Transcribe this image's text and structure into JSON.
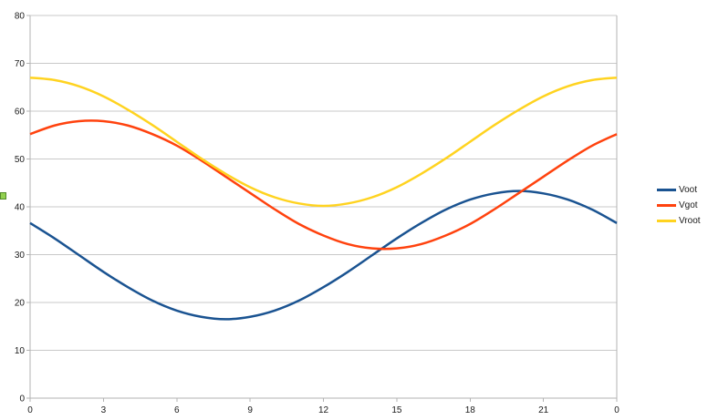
{
  "chart_data": {
    "type": "line",
    "title": "",
    "xlabel": "",
    "ylabel": "",
    "xlim": [
      0,
      24
    ],
    "ylim": [
      0,
      80
    ],
    "grid": "horizontal",
    "legend_position": "right",
    "x": [
      0,
      1,
      2,
      3,
      4,
      5,
      6,
      7,
      8,
      9,
      10,
      11,
      12,
      13,
      14,
      15,
      16,
      17,
      18,
      19,
      20,
      21,
      22,
      23,
      24
    ],
    "x_tick_positions": [
      0,
      3,
      6,
      9,
      12,
      15,
      18,
      21,
      24
    ],
    "x_tick_labels": [
      "0",
      "3",
      "6",
      "9",
      "12",
      "15",
      "18",
      "21",
      "0"
    ],
    "y_ticks": [
      0,
      10,
      20,
      30,
      40,
      50,
      60,
      70,
      80
    ],
    "y_tick_labels": [
      "0",
      "10",
      "20",
      "30",
      "40",
      "50",
      "60",
      "70",
      "80"
    ],
    "series": [
      {
        "name": "Voot",
        "color": "#1a5391",
        "values": [
          36.6,
          33.4,
          29.9,
          26.4,
          23.2,
          20.4,
          18.3,
          17.0,
          16.5,
          17.0,
          18.3,
          20.4,
          23.2,
          26.4,
          29.9,
          33.4,
          36.6,
          39.4,
          41.5,
          42.8,
          43.3,
          42.8,
          41.5,
          39.4,
          36.6
        ]
      },
      {
        "name": "Vgot",
        "color": "#ff420e",
        "values": [
          55.2,
          57.0,
          57.9,
          57.9,
          57.0,
          55.2,
          52.8,
          49.7,
          46.3,
          42.9,
          39.5,
          36.4,
          34.0,
          32.2,
          31.3,
          31.3,
          32.2,
          34.0,
          36.4,
          39.5,
          42.9,
          46.3,
          49.7,
          52.8,
          55.2
        ]
      },
      {
        "name": "Vroot",
        "color": "#ffd320",
        "values": [
          67.0,
          66.5,
          65.2,
          63.1,
          60.3,
          57.1,
          53.6,
          50.1,
          46.9,
          44.1,
          42.0,
          40.7,
          40.2,
          40.7,
          42.0,
          44.1,
          46.9,
          50.1,
          53.6,
          57.1,
          60.3,
          63.1,
          65.2,
          66.5,
          67.0
        ]
      }
    ]
  },
  "colors": {
    "background": "#ffffff",
    "gridline": "#c9c9c9",
    "axis": "#b3b3b3",
    "label": "#1a1a1a",
    "handle_fill": "#92d050",
    "handle_border": "#538b29"
  }
}
